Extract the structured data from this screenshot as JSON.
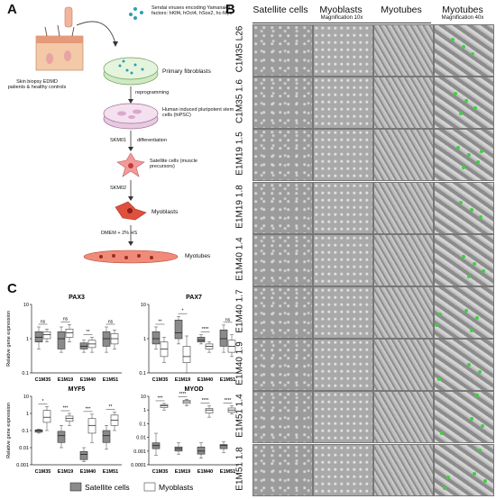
{
  "panelA": {
    "letter": "A",
    "skin_label": "Skin biopsy EDMD patients & healthy controls",
    "virus_label": "Sendai viruses encoding Yamanaka factors: hKlf4, hOct4, hSox2, hc-Myc",
    "steps": [
      "Primary fibroblasts",
      "reprogramming",
      "Human induced pluripotent stem cells (hiPSC)",
      "SKM01",
      "differentiation",
      "Satellite cells (muscle precursors)",
      "SKM02",
      "Myoblasts",
      "DMEM + 2% HS",
      "Myotubes"
    ]
  },
  "panelB": {
    "letter": "B",
    "columns": [
      "Satellite cells",
      "Myoblasts",
      "Myotubes",
      "Myotubes"
    ],
    "mag10": "Magnification 10x",
    "mag40": "Magnification 40x",
    "rows": [
      "C1M35 L26",
      "C1M35 1.6",
      "E1M19 1.5",
      "E1M19 1.8",
      "E1M40 1.4",
      "E1M40 1.7",
      "E1M40 1.9",
      "E1M51 1.4",
      "E1M51 1.8"
    ]
  },
  "panelC": {
    "letter": "C",
    "ylabel": "Relative gene expression",
    "legend": [
      "Satellite cells",
      "Myoblasts"
    ]
  },
  "chart_data": [
    {
      "type": "box",
      "title": "PAX3",
      "categories": [
        "C1M35",
        "E1M19",
        "E1M40",
        "E1M51"
      ],
      "ylim": [
        0.1,
        10
      ],
      "yticks": [
        "0.1",
        "1",
        "10"
      ],
      "log": true,
      "series": [
        {
          "name": "Satellite cells",
          "median": [
            1.1,
            1.0,
            0.6,
            1.0
          ],
          "q1": [
            0.8,
            0.5,
            0.5,
            0.6
          ],
          "q3": [
            1.6,
            1.6,
            0.75,
            1.6
          ],
          "min": [
            0.5,
            0.4,
            0.4,
            0.4
          ],
          "max": [
            2.2,
            2.2,
            0.9,
            2.2
          ]
        },
        {
          "name": "Myoblasts",
          "median": [
            1.3,
            1.5,
            0.7,
            1.0
          ],
          "q1": [
            1.0,
            1.1,
            0.55,
            0.7
          ],
          "q3": [
            1.6,
            1.9,
            0.9,
            1.4
          ],
          "min": [
            0.8,
            0.8,
            0.4,
            0.5
          ],
          "max": [
            1.9,
            2.6,
            1.1,
            1.8
          ]
        }
      ],
      "sig": [
        "ns",
        "ns",
        "**",
        "ns"
      ]
    },
    {
      "type": "box",
      "title": "PAX7",
      "categories": [
        "C1M35",
        "E1M19",
        "E1M40",
        "E1M51"
      ],
      "ylim": [
        0.1,
        10
      ],
      "yticks": [
        "0.1",
        "1",
        "10"
      ],
      "log": true,
      "series": [
        {
          "name": "Satellite cells",
          "median": [
            1.0,
            1.5,
            0.9,
            1.0
          ],
          "q1": [
            0.7,
            1.0,
            0.8,
            0.6
          ],
          "q3": [
            1.6,
            3.5,
            1.1,
            1.8
          ],
          "min": [
            0.5,
            0.7,
            0.7,
            0.4
          ],
          "max": [
            2.2,
            4.5,
            1.3,
            2.5
          ]
        },
        {
          "name": "Myoblasts",
          "median": [
            0.5,
            0.3,
            0.6,
            0.6
          ],
          "q1": [
            0.3,
            0.2,
            0.5,
            0.4
          ],
          "q3": [
            0.8,
            0.6,
            0.7,
            0.9
          ],
          "min": [
            0.2,
            0.1,
            0.4,
            0.3
          ],
          "max": [
            1.1,
            1.2,
            0.8,
            1.3
          ]
        }
      ],
      "sig": [
        "**",
        "*",
        "****",
        "ns"
      ]
    },
    {
      "type": "box",
      "title": "MYF5",
      "categories": [
        "C1M35",
        "E1M19",
        "E1M40",
        "E1M51"
      ],
      "ylim": [
        0.001,
        10
      ],
      "yticks": [
        "0.001",
        "0.01",
        "0.1",
        "1",
        "10"
      ],
      "log": true,
      "series": [
        {
          "name": "Satellite cells",
          "median": [
            0.1,
            0.05,
            0.004,
            0.05
          ],
          "q1": [
            0.08,
            0.02,
            0.002,
            0.02
          ],
          "q3": [
            0.11,
            0.09,
            0.006,
            0.1
          ],
          "min": [
            0.07,
            0.01,
            0.0015,
            0.008
          ],
          "max": [
            0.12,
            0.2,
            0.01,
            0.2
          ]
        },
        {
          "name": "Myoblasts",
          "median": [
            0.6,
            0.5,
            0.2,
            0.4
          ],
          "q1": [
            0.3,
            0.35,
            0.07,
            0.2
          ],
          "q3": [
            1.5,
            0.7,
            0.5,
            0.8
          ],
          "min": [
            0.1,
            0.2,
            0.02,
            0.1
          ],
          "max": [
            2.5,
            1.0,
            0.9,
            1.2
          ]
        }
      ],
      "sig": [
        "*",
        "***",
        "***",
        "**"
      ]
    },
    {
      "type": "box",
      "title": "MYOD",
      "categories": [
        "C1M35",
        "E1M19",
        "E1M40",
        "E1M51"
      ],
      "ylim": [
        0.0001,
        10
      ],
      "yticks": [
        "0.0001",
        "0.001",
        "0.01",
        "0.1",
        "1",
        "10"
      ],
      "log": true,
      "series": [
        {
          "name": "Satellite cells",
          "median": [
            0.0025,
            0.0015,
            0.001,
            0.0025
          ],
          "q1": [
            0.0015,
            0.001,
            0.0006,
            0.0015
          ],
          "q3": [
            0.004,
            0.002,
            0.002,
            0.003
          ],
          "min": [
            0.0005,
            0.0006,
            0.0003,
            0.0008
          ],
          "max": [
            0.02,
            0.004,
            0.004,
            0.005
          ]
        },
        {
          "name": "Myoblasts",
          "median": [
            2,
            4,
            1,
            1
          ],
          "q1": [
            1.5,
            3,
            0.6,
            0.7
          ],
          "q3": [
            2.5,
            5,
            1.3,
            1.4
          ],
          "min": [
            1,
            2,
            0.3,
            0.5
          ],
          "max": [
            3,
            6,
            2,
            2
          ]
        }
      ],
      "sig": [
        "***",
        "****",
        "****",
        "****"
      ]
    }
  ]
}
